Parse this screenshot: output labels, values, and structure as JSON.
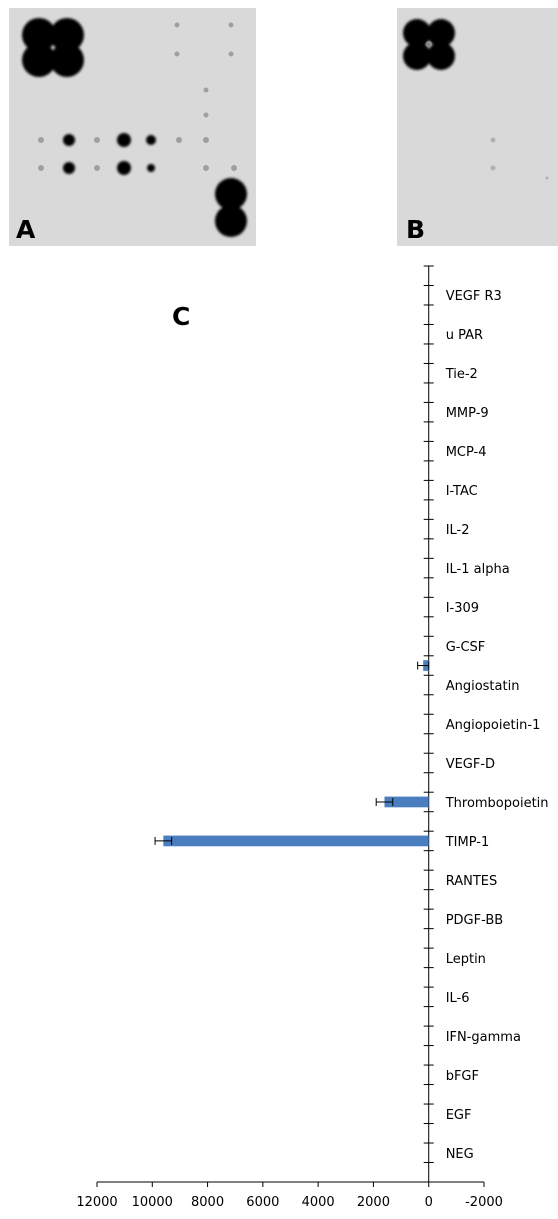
{
  "panels": {
    "a": "A",
    "b": "B",
    "c": "C"
  },
  "colors": {
    "bar": "#4a7ebf",
    "axis": "#000000",
    "blot_bg": "#d9d9d9",
    "spot": "#000000"
  },
  "chart_data": {
    "type": "bar",
    "orientation": "horizontal",
    "title": "",
    "xlabel": "",
    "ylabel": "",
    "xlim": [
      12000,
      -2000
    ],
    "x_reversed": true,
    "xticks": [
      12000,
      10000,
      8000,
      6000,
      4000,
      2000,
      0,
      -2000
    ],
    "xtick_labels": [
      "12000",
      "10000",
      "8000",
      "6000",
      "4000",
      "2000",
      "0",
      "-2000"
    ],
    "categories": [
      "",
      "NEG",
      "",
      "EGF",
      "",
      "bFGF",
      "",
      "IFN-gamma",
      "",
      "IL-6",
      "",
      "Leptin",
      "",
      "PDGF-BB",
      "",
      "RANTES",
      "",
      "TIMP-1",
      "",
      "Thrombopoietin",
      "",
      "VEGF-D",
      "",
      "Angiopoietin-1",
      "",
      "Angiostatin",
      "",
      "G-CSF",
      "",
      "I-309",
      "",
      "IL-1 alpha",
      "",
      "IL-2",
      "",
      "I-TAC",
      "",
      "MCP-4",
      "",
      "MMP-9",
      "",
      "Tie-2",
      "",
      "u PAR",
      "",
      "VEGF R3",
      ""
    ],
    "values": [
      0,
      0,
      0,
      0,
      0,
      0,
      0,
      0,
      0,
      0,
      0,
      0,
      0,
      0,
      0,
      0,
      0,
      9600,
      0,
      1600,
      0,
      0,
      0,
      0,
      0,
      0,
      200,
      0,
      0,
      0,
      0,
      0,
      0,
      0,
      0,
      0,
      0,
      0,
      0,
      0,
      0,
      0,
      0,
      0,
      0,
      0,
      0
    ],
    "errors": [
      0,
      0,
      0,
      0,
      0,
      0,
      0,
      0,
      0,
      0,
      0,
      0,
      0,
      0,
      0,
      0,
      0,
      300,
      0,
      300,
      0,
      0,
      0,
      0,
      0,
      0,
      200,
      0,
      0,
      0,
      0,
      0,
      0,
      0,
      0,
      0,
      0,
      0,
      0,
      0,
      0,
      0,
      0,
      0,
      0,
      0,
      0
    ],
    "grid": false,
    "legend": "none"
  }
}
